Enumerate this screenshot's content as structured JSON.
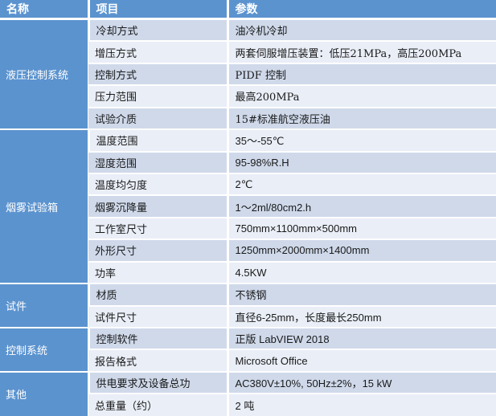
{
  "table": {
    "headers": [
      "名称",
      "项目",
      "参数"
    ],
    "groups": [
      {
        "name": "液压控制系统",
        "rows": [
          {
            "item": "冷却方式",
            "param": "油冷机冷却"
          },
          {
            "item": "增压方式",
            "param": "两套伺服增压装置：低压21MPa，高压200MPa"
          },
          {
            "item": "控制方式",
            "param": "PIDF 控制"
          },
          {
            "item": "压力范围",
            "param": "最高200MPa"
          },
          {
            "item": "试验介质",
            "param": "15#标准航空液压油"
          }
        ]
      },
      {
        "name": "烟雾试验箱",
        "rows": [
          {
            "item": "温度范围",
            "param": "35～-55℃"
          },
          {
            "item": "湿度范围",
            "param": "95-98%R.H"
          },
          {
            "item": "温度均匀度",
            "param": "2℃"
          },
          {
            "item": "烟雾沉降量",
            "param": "1～2ml/80cm2.h"
          },
          {
            "item": "工作室尺寸",
            "param": "750mm×1100mm×500mm"
          },
          {
            "item": "外形尺寸",
            "param": "1250mm×2000mm×1400mm"
          },
          {
            "item": "功率",
            "param": "4.5KW"
          }
        ]
      },
      {
        "name": "试件",
        "rows": [
          {
            "item": "材质",
            "param": "不锈钢"
          },
          {
            "item": "试件尺寸",
            "param": "直径6-25mm，长度最长250mm"
          }
        ]
      },
      {
        "name": "控制系统",
        "rows": [
          {
            "item": "控制软件",
            "param": "正版 LabVIEW 2018"
          },
          {
            "item": "报告格式",
            "param": "Microsoft Office"
          }
        ]
      },
      {
        "name": "其他",
        "rows": [
          {
            "item": "供电要求及设备总功",
            "param": "AC380V±10%, 50Hz±2%，15 kW"
          },
          {
            "item": "总重量（约）",
            "param": "2 吨"
          }
        ]
      }
    ],
    "colors": {
      "header_bg": "#5b93cf",
      "group_bg": "#5b93cf",
      "row_dark": "#cfd9ea",
      "row_light": "#e9eef7",
      "separator": "#ffffff",
      "header_text": "#ffffff",
      "cell_text": "#1a1a1a"
    }
  }
}
